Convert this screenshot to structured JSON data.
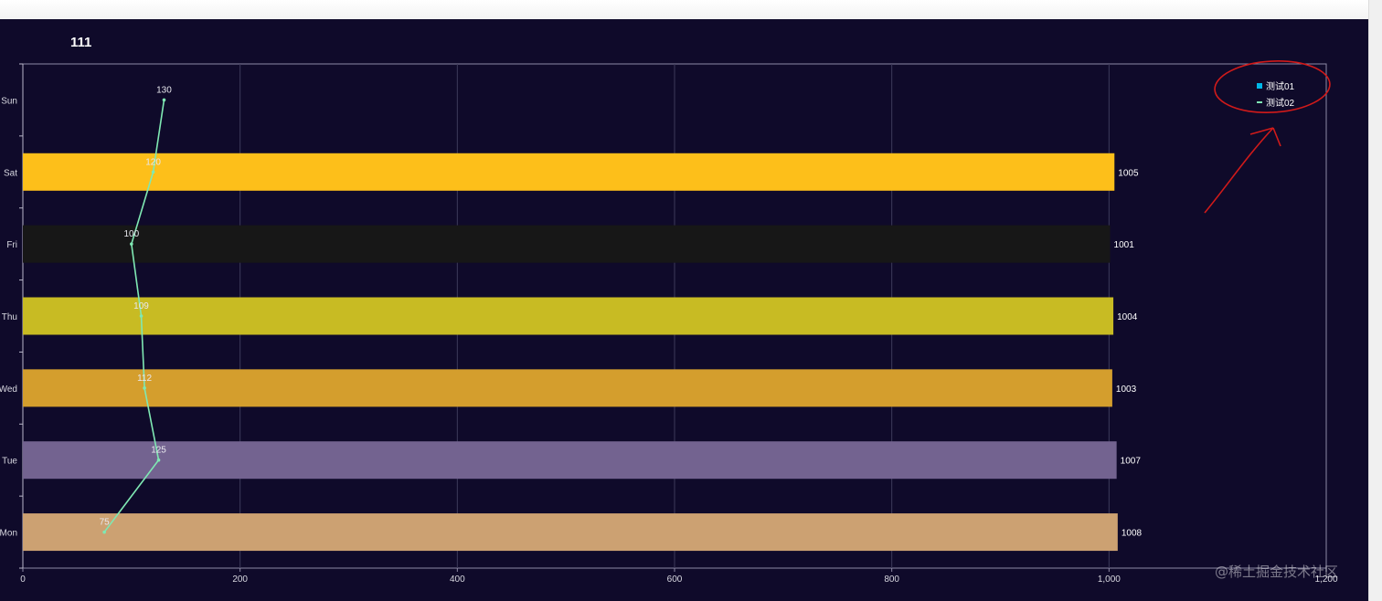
{
  "chart_data": {
    "type": "bar",
    "orientation": "horizontal",
    "title": "111",
    "categories": [
      "Mon",
      "Tue",
      "Wed",
      "Thu",
      "Fri",
      "Sat",
      "Sun"
    ],
    "x_ticks": [
      "0",
      "200",
      "400",
      "600",
      "800",
      "1,000",
      "1,200"
    ],
    "xlim": [
      0,
      1200
    ],
    "grid": true,
    "legend_position": "top-right",
    "series": [
      {
        "name": "测试01",
        "kind": "bar",
        "color": "#00b7e8",
        "values": [
          1008,
          1007,
          1003,
          1004,
          1001,
          1005,
          null
        ],
        "bar_colors": [
          "#cca172",
          "#736390",
          "#d49e2d",
          "#c8bb23",
          "#171717",
          "#fdbf1a",
          null
        ]
      },
      {
        "name": "测试02",
        "kind": "line",
        "color": "#7fe8b3",
        "values": [
          75,
          125,
          112,
          109,
          100,
          120,
          130
        ]
      }
    ]
  },
  "watermark": "@稀土掘金技术社区"
}
